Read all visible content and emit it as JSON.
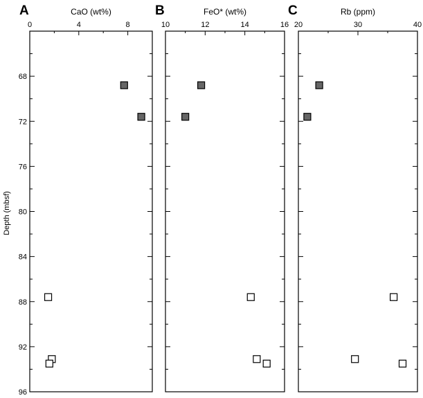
{
  "chart_data": {
    "type": "scatter",
    "ylabel": "Depth (mbsf)",
    "ylim": [
      96,
      64
    ],
    "yticks": [
      68,
      72,
      76,
      80,
      84,
      88,
      92,
      96
    ],
    "yaxis_inverted": true,
    "depths": [
      68.8,
      71.6,
      87.6,
      93.1,
      93.5
    ],
    "marker_fill": [
      "#666666",
      "#666666",
      "#ffffff",
      "#ffffff",
      "#ffffff"
    ],
    "panels": [
      {
        "letter": "A",
        "title": "CaO (wt%)",
        "xlim": [
          0,
          10
        ],
        "xticks": [
          0,
          4,
          8
        ],
        "values": [
          7.7,
          9.1,
          1.5,
          1.8,
          1.6
        ]
      },
      {
        "letter": "B",
        "title": "FeO* (wt%)",
        "xlim": [
          10,
          16
        ],
        "xticks": [
          10,
          12,
          14
        ],
        "values": [
          11.8,
          11.0,
          14.3,
          14.6,
          15.1
        ]
      },
      {
        "letter": "C",
        "title": "Rb (ppm)",
        "xlim": [
          20,
          40
        ],
        "xticks": [
          20,
          30,
          40
        ],
        "values": [
          23.5,
          21.5,
          36.0,
          29.5,
          37.5
        ]
      }
    ]
  }
}
